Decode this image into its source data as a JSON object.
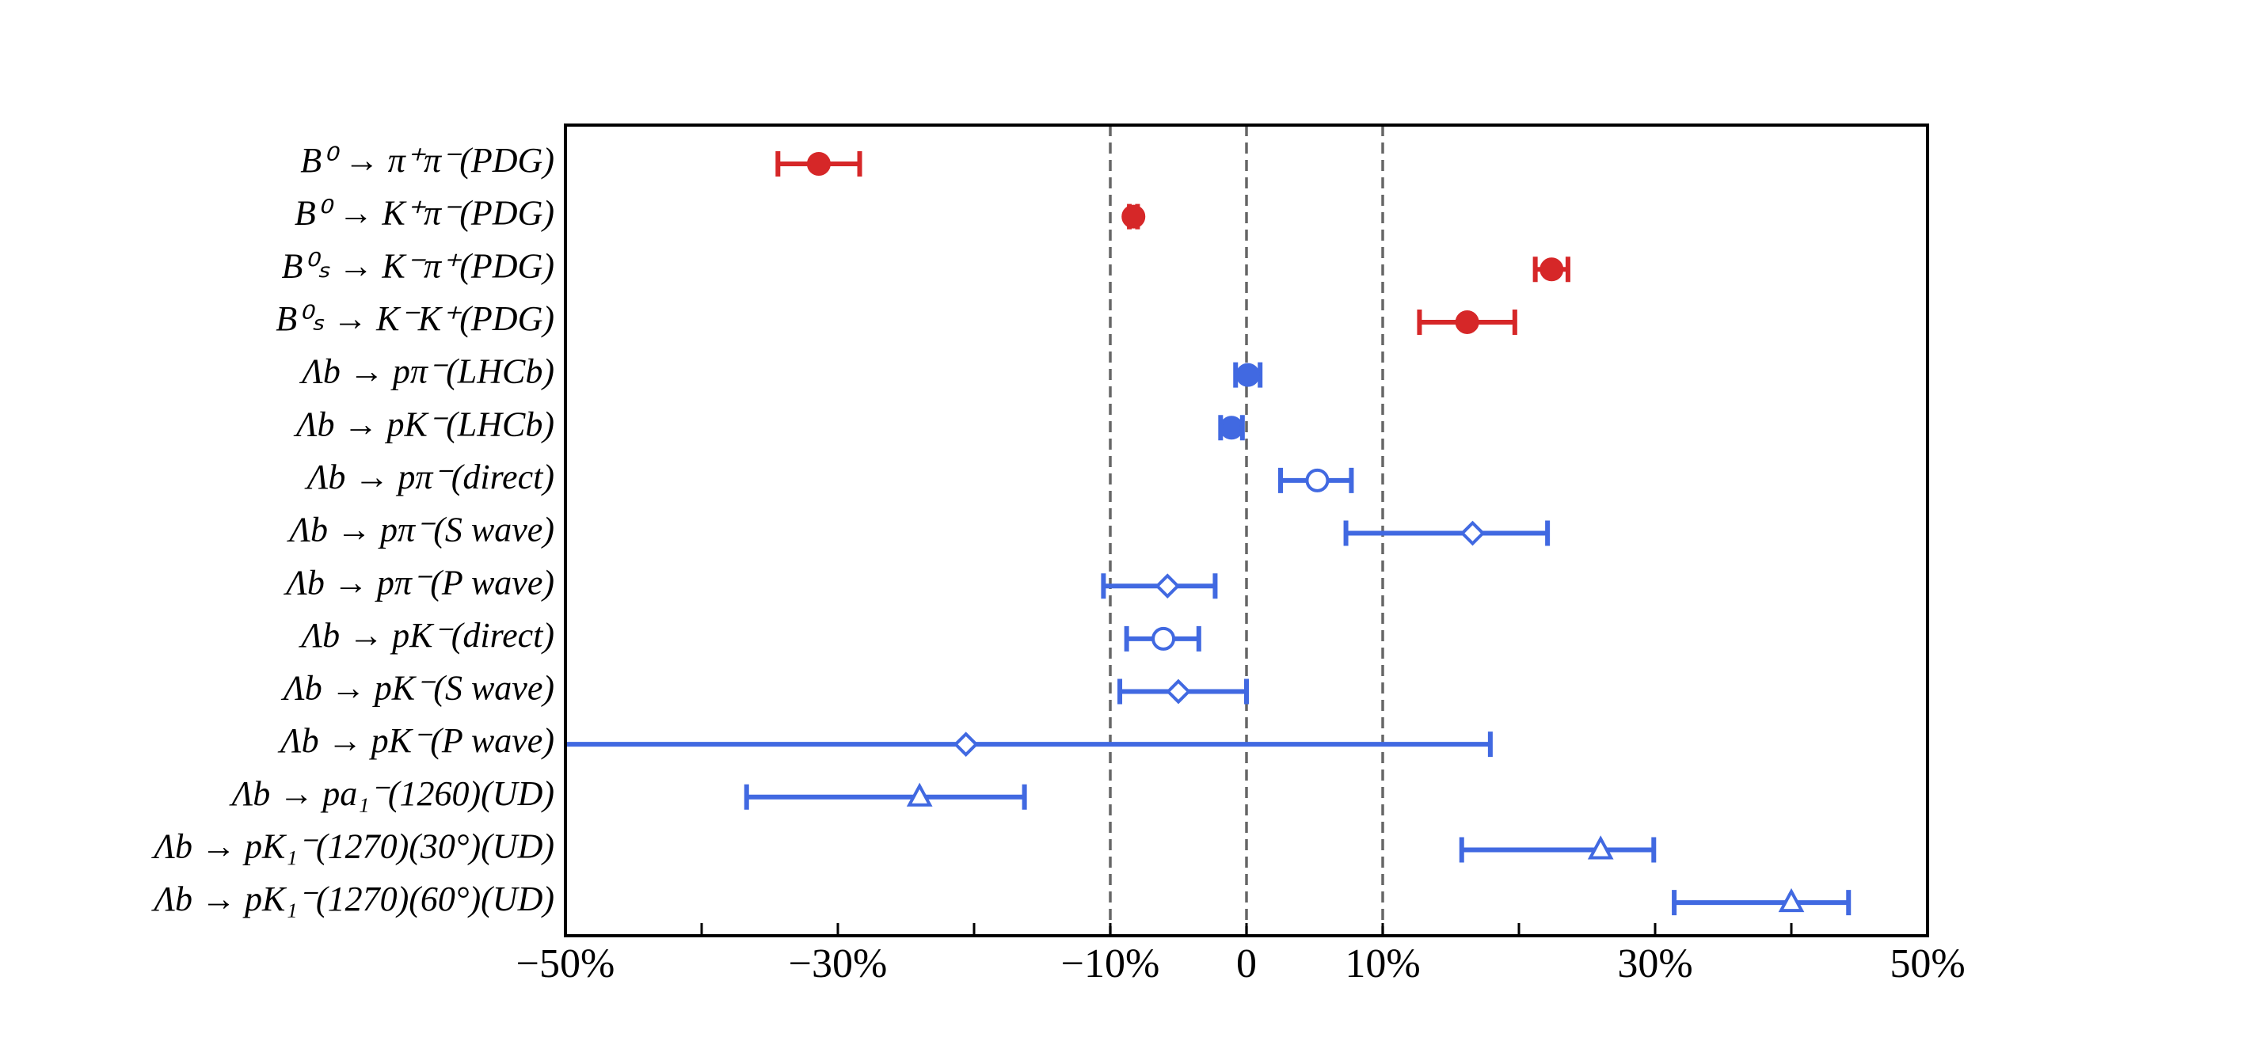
{
  "chart_data": {
    "type": "errorbar",
    "categories": [
      "B⁰ → π⁺π⁻(PDG)",
      "B⁰ → K⁺π⁻(PDG)",
      "B⁰ₛ → K⁻π⁺(PDG)",
      "B⁰ₛ → K⁻K⁺(PDG)",
      "Λb → pπ⁻(LHCb)",
      "Λb → pK⁻(LHCb)",
      "Λb → pπ⁻(direct)",
      "Λb → pπ⁻(S wave)",
      "Λb → pπ⁻(P wave)",
      "Λb → pK⁻(direct)",
      "Λb → pK⁻(S wave)",
      "Λb → pK⁻(P wave)",
      "Λb → pa₁⁻(1260)(UD)",
      "Λb → pK₁⁻(1270)(30°)(UD)",
      "Λb → pK₁⁻(1270)(60°)(UD)"
    ],
    "values": [
      -31.4,
      -8.3,
      22.4,
      16.2,
      0.1,
      -1.1,
      5.2,
      16.6,
      -5.8,
      -6.1,
      -5.0,
      -20.6,
      -24.0,
      26.0,
      40.0
    ],
    "errors": [
      [
        3.0,
        3.0
      ],
      [
        0.3,
        0.3
      ],
      [
        1.2,
        1.2
      ],
      [
        3.5,
        3.5
      ],
      [
        0.9,
        0.9
      ],
      [
        0.8,
        0.8
      ],
      [
        2.7,
        2.5
      ],
      [
        9.3,
        5.5
      ],
      [
        4.7,
        3.5
      ],
      [
        2.7,
        2.6
      ],
      [
        4.3,
        5.0
      ],
      [
        30.0,
        38.5
      ],
      [
        12.7,
        7.7
      ],
      [
        10.2,
        3.9
      ],
      [
        8.6,
        4.2
      ]
    ],
    "markers": [
      "circle-filled",
      "circle-filled",
      "circle-filled",
      "circle-filled",
      "circle-filled",
      "circle-filled",
      "circle-open",
      "diamond-open",
      "diamond-open",
      "circle-open",
      "diamond-open",
      "diamond-open",
      "triangle-open",
      "triangle-open",
      "triangle-open"
    ],
    "colors": [
      "#d62728",
      "#d62728",
      "#d62728",
      "#d62728",
      "#4169e1",
      "#4169e1",
      "#4169e1",
      "#4169e1",
      "#4169e1",
      "#4169e1",
      "#4169e1",
      "#4169e1",
      "#4169e1",
      "#4169e1",
      "#4169e1"
    ],
    "xlim": [
      -50,
      50
    ],
    "xticks": [
      {
        "value": -50,
        "label": "−50%"
      },
      {
        "value": -30,
        "label": "−30%"
      },
      {
        "value": -10,
        "label": "−10%"
      },
      0,
      {
        "value": 10,
        "label": "10%"
      },
      {
        "value": 30,
        "label": "30%"
      },
      {
        "value": 50,
        "label": "50%"
      }
    ],
    "minor_xticks": [
      -40,
      -20,
      20,
      40
    ],
    "reference_lines": [
      -10,
      0,
      10
    ]
  }
}
